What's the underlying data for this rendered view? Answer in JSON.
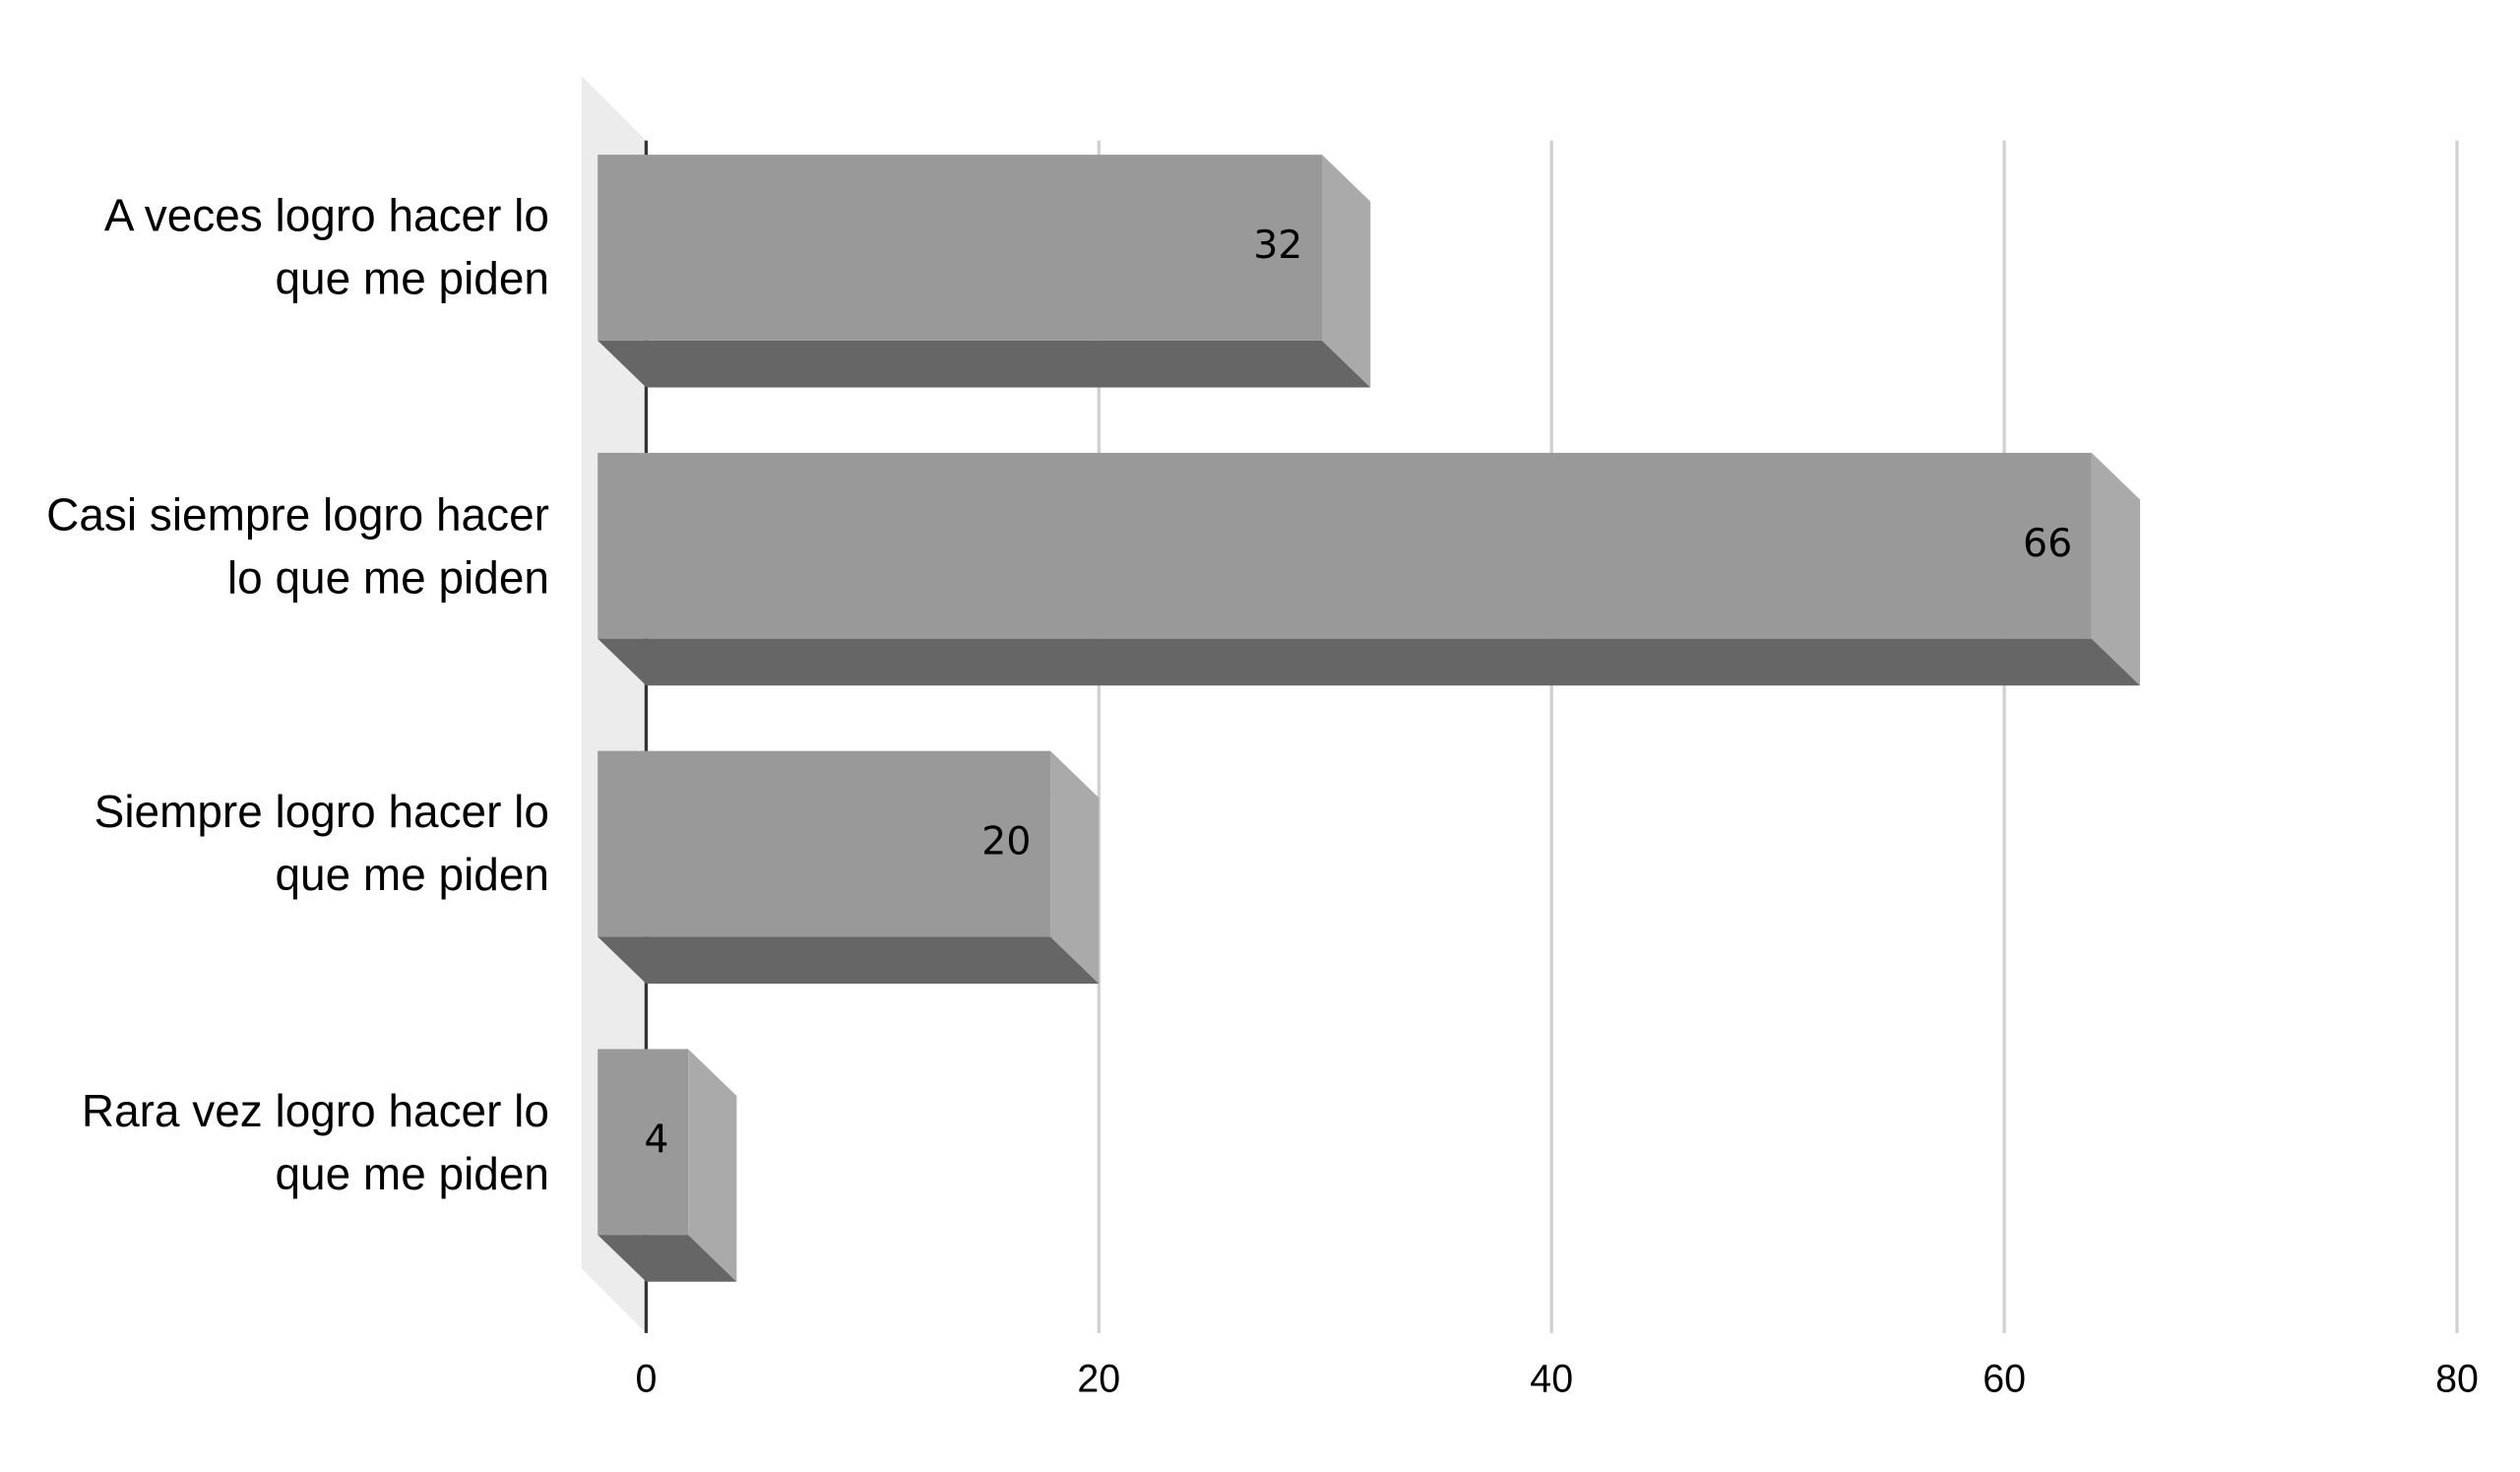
{
  "chart_data": {
    "type": "bar",
    "orientation": "horizontal",
    "style": "3d",
    "categories": [
      "A veces logro hacer lo que me piden",
      "Casi siempre logro hacer lo que me piden",
      "Siempre logro hacer lo que me piden",
      "Rara vez logro hacer lo que me piden"
    ],
    "values": [
      32,
      66,
      20,
      4
    ],
    "color": "#999999",
    "xlim": [
      0,
      80
    ],
    "xticks": [
      0,
      20,
      40,
      60,
      80
    ],
    "grid": true
  }
}
